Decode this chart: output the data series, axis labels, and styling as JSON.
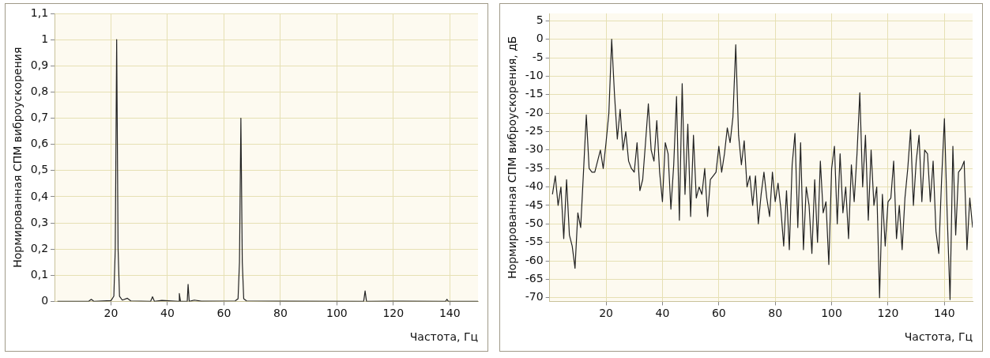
{
  "chart_data": [
    {
      "type": "line",
      "xlabel": "Частота, Гц",
      "ylabel": "Нормированная СПМ виброускорения",
      "xlim": [
        0,
        150
      ],
      "xticks": [
        20,
        40,
        60,
        80,
        100,
        120,
        140
      ],
      "ylim": [
        0,
        1.1
      ],
      "yticks": [
        0,
        {
          "value": 0.1,
          "label": "0,1"
        },
        {
          "value": 0.2,
          "label": "0,2"
        },
        {
          "value": 0.3,
          "label": "0,3"
        },
        {
          "value": 0.4,
          "label": "0,4"
        },
        {
          "value": 0.5,
          "label": "0,5"
        },
        {
          "value": 0.6,
          "label": "0,6"
        },
        {
          "value": 0.7,
          "label": "0,7"
        },
        {
          "value": 0.8,
          "label": "0,8"
        },
        {
          "value": 0.9,
          "label": "0,9"
        },
        1,
        {
          "value": 1.1,
          "label": "1,1"
        }
      ],
      "grid": true,
      "legend": false,
      "marker": "none",
      "line_style": "solid",
      "series": [
        {
          "color": "#222222",
          "x": [
            1,
            12,
            13,
            14,
            20,
            21,
            21.5,
            22,
            22.5,
            23,
            24,
            25.8,
            27,
            34,
            34.7,
            35.4,
            38,
            44,
            44.2,
            44.6,
            47,
            47.3,
            47.7,
            49.5,
            52,
            64,
            65,
            65.5,
            66,
            66.5,
            67,
            68,
            80,
            109.5,
            110,
            110.5,
            120,
            138.5,
            139,
            139.5,
            150
          ],
          "values": [
            0,
            0,
            0.008,
            0,
            0.003,
            0.02,
            0.2,
            1,
            0.2,
            0.02,
            0.005,
            0.012,
            0.002,
            0,
            0.018,
            0,
            0.004,
            0,
            0.03,
            0,
            0,
            0.065,
            0,
            0.005,
            0.001,
            0.002,
            0.01,
            0.15,
            0.7,
            0.15,
            0.01,
            0.002,
            0.001,
            0,
            0.04,
            0,
            0.001,
            0,
            0.008,
            0,
            0
          ]
        }
      ]
    },
    {
      "type": "line",
      "xlabel": "Частота, Гц",
      "ylabel": "Нормированная СПМ виброускорения, дБ",
      "xlim": [
        0,
        150
      ],
      "xticks": [
        20,
        40,
        60,
        80,
        100,
        120,
        140
      ],
      "ylim": [
        -71,
        7
      ],
      "yticks": [
        5,
        0,
        -5,
        -10,
        -15,
        -20,
        -25,
        -30,
        -35,
        -40,
        -45,
        -50,
        -55,
        -60,
        -65,
        -70
      ],
      "grid": true,
      "legend": false,
      "marker": "none",
      "line_style": "solid",
      "series": [
        {
          "color": "#222222",
          "x": [
            1,
            2,
            3,
            4,
            5,
            6,
            7,
            8,
            9,
            10,
            11,
            12,
            13,
            14,
            15,
            16,
            17,
            18,
            19,
            20,
            21,
            22,
            23,
            24,
            25,
            26,
            27,
            28,
            29,
            30,
            31,
            32,
            33,
            34,
            35,
            36,
            37,
            38,
            39,
            40,
            41,
            42,
            43,
            44,
            45,
            46,
            47,
            48,
            49,
            50,
            51,
            52,
            53,
            54,
            55,
            56,
            57,
            58,
            59,
            60,
            61,
            62,
            63,
            64,
            65,
            66,
            67,
            68,
            69,
            70,
            71,
            72,
            73,
            74,
            75,
            76,
            77,
            78,
            79,
            80,
            81,
            82,
            83,
            84,
            85,
            86,
            87,
            88,
            89,
            90,
            91,
            92,
            93,
            94,
            95,
            96,
            97,
            98,
            99,
            100,
            101,
            102,
            103,
            104,
            105,
            106,
            107,
            108,
            109,
            110,
            111,
            112,
            113,
            114,
            115,
            116,
            117,
            118,
            119,
            120,
            121,
            122,
            123,
            124,
            125,
            126,
            127,
            128,
            129,
            130,
            131,
            132,
            133,
            134,
            135,
            136,
            137,
            138,
            139,
            140,
            141,
            142,
            143,
            144,
            145,
            146,
            147,
            148,
            149,
            150
          ],
          "values": [
            -42,
            -37,
            -45,
            -40,
            -54,
            -38,
            -53,
            -56,
            -62,
            -47,
            -51,
            -36,
            -20.5,
            -35,
            -36,
            -36,
            -33,
            -30,
            -35,
            -28,
            -20,
            0,
            -15,
            -27,
            -19,
            -30,
            -25,
            -33,
            -35,
            -36,
            -28,
            -41,
            -38,
            -28,
            -17.5,
            -30,
            -33,
            -22,
            -36,
            -44,
            -28,
            -31,
            -46,
            -34,
            -15.5,
            -49,
            -12,
            -42,
            -23,
            -48,
            -26,
            -43,
            -40,
            -42,
            -35,
            -48,
            -38,
            -37,
            -36,
            -29,
            -36,
            -31,
            -24,
            -28,
            -21,
            -1.5,
            -26,
            -34,
            -27.5,
            -40,
            -37,
            -45,
            -37,
            -50,
            -42,
            -36,
            -43,
            -48,
            -36,
            -44,
            -39,
            -46,
            -56,
            -41,
            -57,
            -34,
            -25.5,
            -51,
            -28,
            -57,
            -40,
            -45,
            -58,
            -38,
            -55,
            -33,
            -47,
            -44,
            -61,
            -35,
            -29,
            -50,
            -31,
            -47,
            -40,
            -54,
            -34,
            -44,
            -31,
            -14.5,
            -40,
            -26,
            -49,
            -30,
            -45,
            -40,
            -70,
            -42,
            -56,
            -44,
            -43,
            -33,
            -54,
            -45,
            -57,
            -43,
            -35,
            -24.5,
            -45,
            -33,
            -26,
            -44,
            -30,
            -31,
            -44,
            -33,
            -52,
            -58,
            -38,
            -21.5,
            -48,
            -70.5,
            -29,
            -53,
            -36,
            -35,
            -33,
            -57,
            -43,
            -51
          ]
        }
      ]
    }
  ]
}
